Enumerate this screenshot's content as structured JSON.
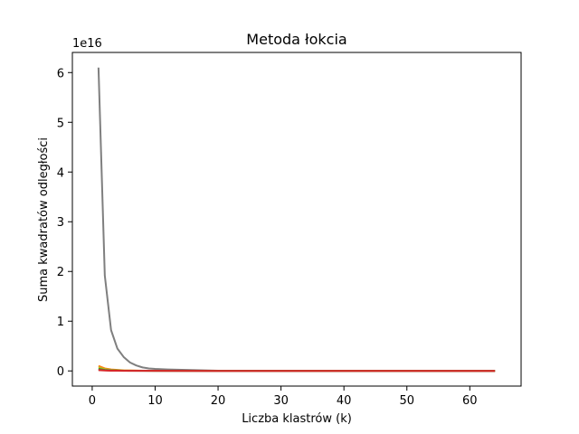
{
  "chart_data": {
    "type": "line",
    "title": "Metoda łokcia",
    "xlabel": "Liczba klastrów (k)",
    "ylabel": "Suma kwadratów odległości",
    "y_offset_label": "1e16",
    "xlim": [
      -3.15,
      68.15
    ],
    "ylim": [
      -0.305,
      6.405
    ],
    "x_ticks": [
      0,
      10,
      20,
      30,
      40,
      50,
      60
    ],
    "x_tick_labels": [
      "0",
      "10",
      "20",
      "30",
      "40",
      "50",
      "60"
    ],
    "y_ticks": [
      0,
      1,
      2,
      3,
      4,
      5,
      6
    ],
    "y_tick_labels": [
      "0",
      "1",
      "2",
      "3",
      "4",
      "5",
      "6"
    ],
    "grid": false,
    "series": [
      {
        "color": "#7f7f7f",
        "x": [
          1,
          2,
          3,
          4,
          5,
          6,
          7,
          8,
          9,
          10,
          12,
          15,
          20,
          30,
          40,
          50,
          64
        ],
        "y": [
          6.1,
          1.92,
          0.82,
          0.45,
          0.28,
          0.17,
          0.11,
          0.07,
          0.05,
          0.04,
          0.03,
          0.02,
          0.005,
          0.002,
          0.001,
          0.001,
          0.0
        ]
      },
      {
        "color": "#ff7f0e",
        "x": [
          1,
          2,
          3,
          4,
          5,
          6,
          8,
          10,
          20,
          30,
          40,
          50,
          64
        ],
        "y": [
          0.1,
          0.05,
          0.03,
          0.02,
          0.01,
          0.008,
          0.005,
          0.003,
          0.002,
          0.001,
          0.001,
          0.001,
          0.0
        ]
      },
      {
        "color": "#bcbd22",
        "x": [
          1,
          2,
          3,
          4,
          5,
          8,
          10,
          20,
          64
        ],
        "y": [
          0.07,
          0.035,
          0.02,
          0.012,
          0.008,
          0.004,
          0.002,
          0.001,
          0.0
        ]
      },
      {
        "color": "#2ca02c",
        "x": [
          1,
          2,
          3,
          4,
          5,
          10,
          20,
          64
        ],
        "y": [
          0.04,
          0.02,
          0.012,
          0.008,
          0.005,
          0.002,
          0.001,
          0.0
        ]
      },
      {
        "color": "#8c564b",
        "x": [
          1,
          2,
          3,
          4,
          5,
          10,
          20,
          64
        ],
        "y": [
          0.025,
          0.013,
          0.008,
          0.005,
          0.003,
          0.001,
          0.0,
          0.0
        ]
      },
      {
        "color": "#d62728",
        "x": [
          1,
          2,
          3,
          4,
          5,
          10,
          20,
          64
        ],
        "y": [
          0.015,
          0.008,
          0.005,
          0.003,
          0.002,
          0.001,
          0.0,
          0.0
        ]
      }
    ]
  }
}
